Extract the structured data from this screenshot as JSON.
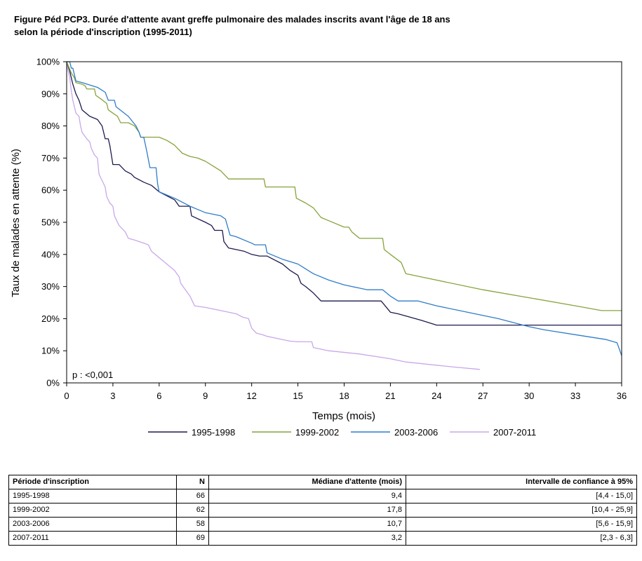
{
  "title_lines": [
    "Figure Péd PCP3. Durée d'attente avant greffe pulmonaire des malades inscrits avant l'âge de 18 ans",
    "selon la période d'inscription (1995-2011)"
  ],
  "chart_data": {
    "type": "line",
    "title": "Figure Péd PCP3. Durée d'attente avant greffe pulmonaire des malades inscrits avant l'âge de 18 ans selon la période d'inscription (1995-2011)",
    "xlabel": "Temps (mois)",
    "ylabel": "Taux de malades en attente (%)",
    "xlim": [
      0,
      36
    ],
    "ylim": [
      0,
      100
    ],
    "x_ticks": [
      0,
      3,
      6,
      9,
      12,
      15,
      18,
      21,
      24,
      27,
      30,
      33,
      36
    ],
    "y_ticks": [
      0,
      10,
      20,
      30,
      40,
      50,
      60,
      70,
      80,
      90,
      100
    ],
    "y_tick_labels": [
      "0%",
      "10%",
      "20%",
      "30%",
      "40%",
      "50%",
      "60%",
      "70%",
      "80%",
      "90%",
      "100%"
    ],
    "grid": false,
    "legend_position": "bottom",
    "annotation": "p : <0,001",
    "series": [
      {
        "name": "1995-1998",
        "color": "#1c1a4d",
        "points": [
          [
            0,
            100
          ],
          [
            0.2,
            97
          ],
          [
            0.4,
            93
          ],
          [
            0.6,
            90
          ],
          [
            0.8,
            88
          ],
          [
            1,
            85
          ],
          [
            1.5,
            83
          ],
          [
            2,
            82
          ],
          [
            2.3,
            80
          ],
          [
            2.5,
            76
          ],
          [
            2.7,
            76
          ],
          [
            2.8,
            74
          ],
          [
            2.9,
            71
          ],
          [
            3,
            68
          ],
          [
            3.4,
            68
          ],
          [
            3.8,
            66
          ],
          [
            4.2,
            65
          ],
          [
            4.4,
            64
          ],
          [
            5,
            62.5
          ],
          [
            5.5,
            61.5
          ],
          [
            6,
            59.5
          ],
          [
            7,
            57
          ],
          [
            7.3,
            55
          ],
          [
            8,
            55
          ],
          [
            8.1,
            52
          ],
          [
            9,
            50
          ],
          [
            9.4,
            49
          ],
          [
            9.6,
            47.5
          ],
          [
            10.1,
            47.5
          ],
          [
            10.2,
            44
          ],
          [
            10.5,
            42
          ],
          [
            11,
            41.5
          ],
          [
            11.5,
            41
          ],
          [
            12,
            40
          ],
          [
            12.5,
            39.5
          ],
          [
            13,
            39.5
          ],
          [
            13.2,
            39
          ],
          [
            14,
            37
          ],
          [
            14.5,
            35
          ],
          [
            15,
            33.5
          ],
          [
            15.2,
            31
          ],
          [
            15.5,
            30
          ],
          [
            16,
            28
          ],
          [
            16.5,
            25.5
          ],
          [
            17,
            25.5
          ],
          [
            20.4,
            25.5
          ],
          [
            21,
            22
          ],
          [
            21.5,
            21.5
          ],
          [
            23,
            19.5
          ],
          [
            24,
            18
          ],
          [
            24.2,
            18
          ],
          [
            36,
            18
          ]
        ]
      },
      {
        "name": "1999-2002",
        "color": "#86a33c",
        "points": [
          [
            0,
            100
          ],
          [
            0.3,
            96.5
          ],
          [
            0.5,
            95
          ],
          [
            0.6,
            93.5
          ],
          [
            1,
            93
          ],
          [
            1.2,
            92.5
          ],
          [
            1.3,
            91.5
          ],
          [
            1.8,
            91.5
          ],
          [
            1.9,
            89.5
          ],
          [
            2.2,
            88.5
          ],
          [
            2.6,
            87
          ],
          [
            2.7,
            85
          ],
          [
            3,
            84
          ],
          [
            3.3,
            83
          ],
          [
            3.5,
            81
          ],
          [
            4,
            81
          ],
          [
            4.4,
            80
          ],
          [
            4.7,
            78
          ],
          [
            4.8,
            76.5
          ],
          [
            6,
            76.5
          ],
          [
            6.5,
            75.5
          ],
          [
            7,
            74
          ],
          [
            7.5,
            71.5
          ],
          [
            8,
            70.5
          ],
          [
            8.5,
            70
          ],
          [
            9,
            69
          ],
          [
            9.5,
            67.5
          ],
          [
            10,
            66
          ],
          [
            10.5,
            63.5
          ],
          [
            12.8,
            63.5
          ],
          [
            12.9,
            61
          ],
          [
            14.8,
            61
          ],
          [
            14.9,
            57.5
          ],
          [
            15.5,
            56
          ],
          [
            16,
            54.5
          ],
          [
            16.5,
            51.5
          ],
          [
            17,
            50.5
          ],
          [
            18,
            48.5
          ],
          [
            18.3,
            48.5
          ],
          [
            18.5,
            47
          ],
          [
            19,
            45
          ],
          [
            20.5,
            45
          ],
          [
            20.6,
            41.5
          ],
          [
            21,
            40
          ],
          [
            21.7,
            37.5
          ],
          [
            22,
            34
          ],
          [
            23,
            33
          ],
          [
            27,
            29
          ],
          [
            30,
            26.5
          ],
          [
            33,
            24
          ],
          [
            34.7,
            22.5
          ],
          [
            36,
            22.5
          ]
        ]
      },
      {
        "name": "2003-2006",
        "color": "#2f7dc8",
        "points": [
          [
            0,
            100
          ],
          [
            0.2,
            100
          ],
          [
            0.3,
            98
          ],
          [
            0.4,
            98
          ],
          [
            0.5,
            96
          ],
          [
            0.6,
            94
          ],
          [
            1,
            93.5
          ],
          [
            2,
            92
          ],
          [
            2.5,
            90.5
          ],
          [
            2.7,
            88
          ],
          [
            3.1,
            88
          ],
          [
            3.2,
            86
          ],
          [
            3.6,
            84.5
          ],
          [
            4,
            83
          ],
          [
            4.5,
            80
          ],
          [
            4.7,
            78
          ],
          [
            4.8,
            76.5
          ],
          [
            5,
            76.5
          ],
          [
            5.2,
            72
          ],
          [
            5.4,
            67
          ],
          [
            5.6,
            67
          ],
          [
            5.8,
            67
          ],
          [
            5.9,
            62
          ],
          [
            6,
            59.5
          ],
          [
            6.5,
            58.5
          ],
          [
            7,
            57.5
          ],
          [
            8,
            55
          ],
          [
            8.5,
            54
          ],
          [
            9,
            53
          ],
          [
            10,
            52
          ],
          [
            10.3,
            51
          ],
          [
            10.6,
            46
          ],
          [
            11,
            45.5
          ],
          [
            12,
            43.5
          ],
          [
            12.2,
            43
          ],
          [
            12.9,
            43
          ],
          [
            13,
            40.5
          ],
          [
            14,
            38.5
          ],
          [
            15,
            37
          ],
          [
            15.5,
            35.5
          ],
          [
            16,
            34
          ],
          [
            17,
            32
          ],
          [
            18,
            30.5
          ],
          [
            19,
            29.5
          ],
          [
            19.5,
            29
          ],
          [
            20.5,
            29
          ],
          [
            21,
            27
          ],
          [
            21.5,
            25.5
          ],
          [
            22,
            25.5
          ],
          [
            22.8,
            25.5
          ],
          [
            24,
            24
          ],
          [
            26,
            22
          ],
          [
            28,
            20
          ],
          [
            30,
            17.5
          ],
          [
            31,
            16.5
          ],
          [
            33,
            15
          ],
          [
            35,
            13.5
          ],
          [
            35.7,
            12.5
          ],
          [
            36,
            8.5
          ]
        ]
      },
      {
        "name": "2007-2011",
        "color": "#c8a8e8",
        "points": [
          [
            0,
            99
          ],
          [
            0.2,
            95
          ],
          [
            0.3,
            91
          ],
          [
            0.4,
            88
          ],
          [
            0.5,
            86
          ],
          [
            0.6,
            84
          ],
          [
            0.8,
            83
          ],
          [
            0.9,
            80
          ],
          [
            1,
            78
          ],
          [
            1.3,
            76
          ],
          [
            1.5,
            75
          ],
          [
            1.6,
            73
          ],
          [
            1.8,
            71
          ],
          [
            2,
            70
          ],
          [
            2.1,
            65
          ],
          [
            2.3,
            63
          ],
          [
            2.5,
            61
          ],
          [
            2.6,
            58
          ],
          [
            2.8,
            56
          ],
          [
            3,
            55
          ],
          [
            3.1,
            52
          ],
          [
            3.4,
            49
          ],
          [
            3.8,
            47
          ],
          [
            4,
            45
          ],
          [
            4.4,
            44.5
          ],
          [
            5,
            43.5
          ],
          [
            5.3,
            43
          ],
          [
            5.5,
            41
          ],
          [
            6,
            39
          ],
          [
            6.5,
            37
          ],
          [
            7,
            35
          ],
          [
            7.3,
            33
          ],
          [
            7.4,
            31
          ],
          [
            7.7,
            29
          ],
          [
            8,
            27
          ],
          [
            8.3,
            24
          ],
          [
            9,
            23.5
          ],
          [
            10,
            22.5
          ],
          [
            11,
            21.5
          ],
          [
            11.4,
            20.5
          ],
          [
            11.8,
            20
          ],
          [
            12,
            17
          ],
          [
            12.3,
            15.5
          ],
          [
            12.7,
            15
          ],
          [
            13,
            14.5
          ],
          [
            14,
            13.5
          ],
          [
            14.5,
            13
          ],
          [
            15,
            12.8
          ],
          [
            15.9,
            12.8
          ],
          [
            16,
            11
          ],
          [
            17,
            10
          ],
          [
            19,
            9
          ],
          [
            21,
            7.5
          ],
          [
            22,
            6.5
          ],
          [
            24,
            5.5
          ],
          [
            25,
            5
          ],
          [
            26.8,
            4.2
          ]
        ]
      }
    ]
  },
  "table": {
    "headers": [
      "Période d'inscription",
      "N",
      "Médiane d'attente (mois)",
      "Intervalle de confiance à 95%"
    ],
    "rows": [
      [
        "1995-1998",
        "66",
        "9,4",
        "[4,4 - 15,0]"
      ],
      [
        "1999-2002",
        "62",
        "17,8",
        "[10,4 - 25,9]"
      ],
      [
        "2003-2006",
        "58",
        "10,7",
        "[5,6 - 15,9]"
      ],
      [
        "2007-2011",
        "69",
        "3,2",
        "[2,3 - 6,3]"
      ]
    ]
  }
}
